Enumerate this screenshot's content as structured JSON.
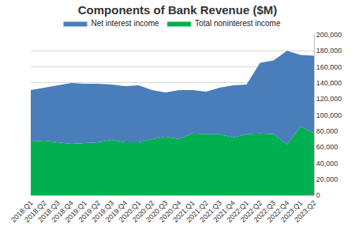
{
  "chart_data": {
    "type": "area",
    "title": "Components of Bank Revenue ($M)",
    "stacked": true,
    "grid": true,
    "legend": "top",
    "categories": [
      "2018:Q1",
      "2018:Q2",
      "2018:Q3",
      "2018:Q4",
      "2019:Q1",
      "2019:Q2",
      "2019:Q3",
      "2019:Q4",
      "2020:Q1",
      "2020:Q2",
      "2020:Q3",
      "2020:Q4",
      "2021:Q1",
      "2021:Q2",
      "2021:Q3",
      "2021:Q4",
      "2022:Q1",
      "2022:Q2",
      "2022:Q3",
      "2022:Q4",
      "2023:Q1",
      "2023:Q2"
    ],
    "series": [
      {
        "name": "Net interest income",
        "color": "#4a7ebb",
        "values": [
          64000,
          66000,
          71000,
          76000,
          74000,
          73000,
          69000,
          70000,
          71000,
          61000,
          55000,
          61000,
          54000,
          53000,
          58000,
          65000,
          62000,
          88000,
          92000,
          117000,
          89000,
          97000
        ]
      },
      {
        "name": "Total noninterest income",
        "color": "#00b050",
        "values": [
          67000,
          68000,
          66000,
          64000,
          65000,
          66000,
          69000,
          66000,
          66000,
          70000,
          73000,
          70000,
          77000,
          76000,
          76000,
          72000,
          76000,
          77000,
          76000,
          63000,
          86000,
          77000
        ]
      }
    ],
    "ylim": [
      0,
      200000
    ],
    "yticks": [
      0,
      {
        "value": 20000,
        "label": "20,000"
      },
      {
        "value": 40000,
        "label": "40,000"
      },
      {
        "value": 60000,
        "label": "60,000"
      },
      {
        "value": 80000,
        "label": "80,000"
      },
      {
        "value": 100000,
        "label": "100,000"
      },
      {
        "value": 120000,
        "label": "120,000"
      },
      {
        "value": 140000,
        "label": "140,000"
      },
      {
        "value": 160000,
        "label": "160,000"
      },
      {
        "value": 180000,
        "label": "180,000"
      },
      {
        "value": 200000,
        "label": "200,000"
      }
    ]
  }
}
